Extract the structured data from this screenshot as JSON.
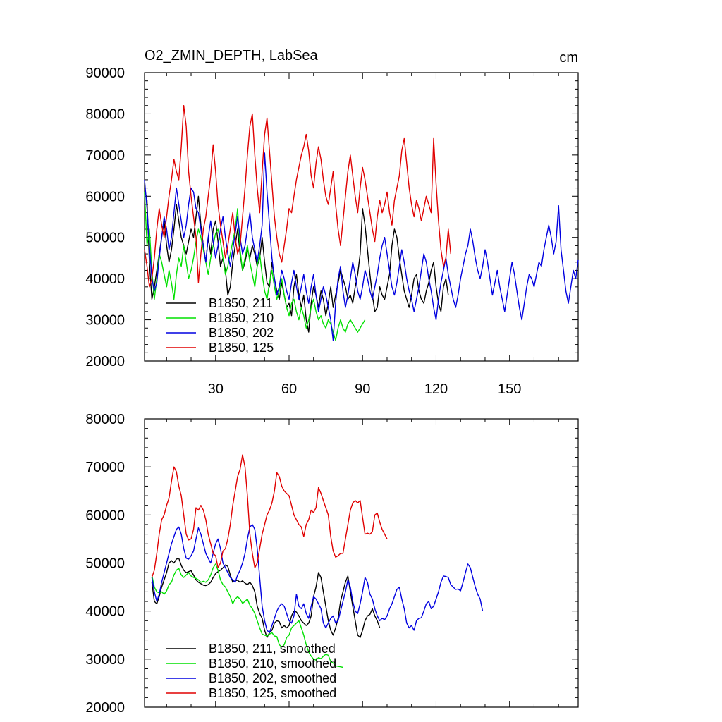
{
  "chart_data": [
    {
      "type": "line",
      "title": "O2_ZMIN_DEPTH, LabSea",
      "units": "cm",
      "xlim": [
        1,
        178
      ],
      "ylim": [
        20000,
        90000
      ],
      "xticks": [
        30,
        60,
        90,
        120,
        150
      ],
      "yticks": [
        20000,
        30000,
        40000,
        50000,
        60000,
        70000,
        80000,
        90000
      ],
      "legend_position": "bottom-left",
      "series": [
        {
          "name": "B1850, 211",
          "color": "#000000",
          "x_start": 1,
          "values": [
            62000,
            59000,
            44000,
            35000,
            38000,
            42000,
            46000,
            50000,
            54000,
            48000,
            44000,
            47000,
            52000,
            58000,
            54000,
            50000,
            48000,
            46000,
            49000,
            52000,
            50000,
            55000,
            60000,
            53000,
            48000,
            44000,
            50000,
            46000,
            52000,
            54000,
            49000,
            43000,
            45000,
            42000,
            36000,
            38000,
            44000,
            48000,
            52000,
            46000,
            42000,
            44000,
            47000,
            45000,
            48000,
            46000,
            43000,
            45000,
            50000,
            44000,
            39000,
            38000,
            44000,
            40000,
            37000,
            35000,
            39000,
            36000,
            33000,
            34000,
            31000,
            38000,
            41000,
            36000,
            33000,
            36000,
            30000,
            27000,
            34000,
            38000,
            36000,
            33000,
            37000,
            35000,
            31000,
            34000,
            38000,
            33000,
            36000,
            39000,
            42000,
            40000,
            38000,
            35000,
            36000,
            34000,
            38000,
            41000,
            46000,
            57000,
            53000,
            47000,
            41000,
            36000,
            32000,
            33000,
            38000,
            36000,
            35000,
            38000,
            41000,
            48000,
            52000,
            50000,
            45000,
            41000,
            37000,
            35000,
            33000,
            36000,
            40000,
            41000,
            37000,
            35000,
            34000,
            37000,
            39000,
            42000,
            44000,
            38000,
            34000,
            32000,
            38000,
            40000,
            36000
          ]
        },
        {
          "name": "B1850, 210",
          "color": "#00e000",
          "x_start": 1,
          "values": [
            61000,
            48000,
            52000,
            42000,
            35000,
            40000,
            46000,
            44000,
            41000,
            38000,
            42000,
            39000,
            35000,
            41000,
            45000,
            43000,
            48000,
            44000,
            40000,
            42000,
            45000,
            49000,
            52000,
            50000,
            47000,
            44000,
            41000,
            45000,
            48000,
            51000,
            52000,
            49000,
            45000,
            41000,
            43000,
            46000,
            49000,
            52000,
            57000,
            47000,
            42000,
            45000,
            48000,
            44000,
            41000,
            38000,
            43000,
            46000,
            41000,
            37000,
            35000,
            39000,
            42000,
            38000,
            35000,
            37000,
            40000,
            36000,
            33000,
            31000,
            34000,
            35000,
            32000,
            30000,
            33000,
            31000,
            28000,
            30000,
            33000,
            35000,
            32000,
            30000,
            31000,
            29000,
            28000,
            30000,
            29000,
            27000,
            25000,
            28000,
            30000,
            28000,
            27000,
            29000,
            30000,
            29000,
            28000,
            27000,
            28000,
            29000,
            30000
          ]
        },
        {
          "name": "B1850, 202",
          "color": "#0000e0",
          "x_start": 1,
          "values": [
            64000,
            57000,
            48000,
            40000,
            37000,
            39000,
            45000,
            50000,
            55000,
            52000,
            47000,
            50000,
            56000,
            62000,
            58000,
            54000,
            50000,
            53000,
            58000,
            62000,
            61000,
            57000,
            56000,
            52000,
            48000,
            44000,
            50000,
            54000,
            49000,
            45000,
            48000,
            52000,
            55000,
            50000,
            46000,
            43000,
            47000,
            51000,
            55000,
            50000,
            46000,
            48000,
            52000,
            56000,
            50000,
            47000,
            44000,
            48000,
            53000,
            70500,
            61000,
            53000,
            45000,
            40000,
            36000,
            38000,
            42000,
            40000,
            37000,
            35000,
            39000,
            42000,
            38000,
            35000,
            38000,
            41000,
            37000,
            34000,
            38000,
            41000,
            36000,
            32000,
            35000,
            38000,
            36000,
            33000,
            30000,
            25000,
            34000,
            40000,
            43000,
            37000,
            33000,
            36000,
            40000,
            44000,
            41000,
            37000,
            35000,
            38000,
            42000,
            40000,
            37000,
            35000,
            38000,
            41000,
            45000,
            48000,
            50000,
            46000,
            42000,
            38000,
            36000,
            39000,
            43000,
            47000,
            44000,
            40000,
            37000,
            35000,
            32000,
            35000,
            38000,
            42000,
            46000,
            44000,
            40000,
            37000,
            33000,
            30000,
            35000,
            39000,
            42000,
            45000,
            41000,
            38000,
            35000,
            33000,
            36000,
            40000,
            43000,
            46000,
            48000,
            52000,
            49000,
            45000,
            42000,
            40000,
            43000,
            47000,
            44000,
            40000,
            36000,
            39000,
            42000,
            38000,
            35000,
            32000,
            36000,
            40000,
            44000,
            41000,
            37000,
            33000,
            30000,
            34000,
            38000,
            41000,
            40000,
            38000,
            41000,
            44000,
            43000,
            47000,
            50000,
            53000,
            50000,
            46000,
            49000,
            57700,
            47000,
            42000,
            37000,
            34000,
            38000,
            42000,
            40000,
            44500
          ]
        },
        {
          "name": "B1850, 125",
          "color": "#e00000",
          "x_start": 1,
          "values": [
            47000,
            43000,
            38000,
            40000,
            45000,
            52000,
            57000,
            53000,
            50000,
            55000,
            60000,
            64000,
            69000,
            66000,
            64000,
            72000,
            82000,
            77000,
            66000,
            60000,
            55000,
            50000,
            39000,
            46000,
            52000,
            55000,
            60000,
            65000,
            72500,
            66000,
            58000,
            53000,
            49000,
            45000,
            48000,
            52000,
            56000,
            50000,
            46000,
            48000,
            55000,
            62000,
            70000,
            77000,
            80000,
            70000,
            62000,
            56000,
            66000,
            75000,
            79000,
            71000,
            63000,
            55000,
            50000,
            46000,
            44000,
            48000,
            52000,
            57000,
            56000,
            60000,
            64000,
            67000,
            70000,
            72000,
            75000,
            71000,
            65000,
            62000,
            68000,
            72000,
            69000,
            64000,
            60000,
            58000,
            62000,
            66000,
            58000,
            52000,
            48000,
            54000,
            60000,
            66000,
            70000,
            65000,
            60000,
            56000,
            62000,
            67000,
            64000,
            60000,
            56000,
            52000,
            49000,
            55000,
            59000,
            56000,
            58000,
            61000,
            56000,
            53000,
            59000,
            62000,
            65000,
            71000,
            74000,
            68000,
            62000,
            58000,
            55000,
            59000,
            57000,
            54000,
            57000,
            60000,
            58000,
            56000,
            74000,
            63000,
            54000,
            47000,
            43000,
            45000,
            52000,
            46000
          ]
        }
      ]
    },
    {
      "type": "line",
      "title": "",
      "xlim": [
        1,
        178
      ],
      "ylim": [
        20000,
        80000
      ],
      "yticks": [
        20000,
        30000,
        40000,
        50000,
        60000,
        70000,
        80000
      ],
      "legend_position": "bottom-left",
      "series": [
        {
          "name": "B1850, 211, smoothed",
          "color": "#000000",
          "x_start": 4,
          "values": [
            46000,
            42000,
            41500,
            43000,
            45000,
            46500,
            48000,
            50000,
            50500,
            50000,
            50800,
            51000,
            49500,
            48500,
            48000,
            48200,
            48400,
            47500,
            46500,
            46000,
            45700,
            45400,
            45300,
            45500,
            46000,
            47000,
            47800,
            48200,
            48500,
            49000,
            49600,
            49300,
            47500,
            46000,
            46300,
            46400,
            46000,
            46300,
            45800,
            45500,
            46000,
            45300,
            44000,
            41000,
            39500,
            38500,
            36000,
            34500,
            35500,
            36000,
            37500,
            38000,
            37800,
            36500,
            37000,
            36500,
            37000,
            39000,
            40000,
            39800,
            39000,
            38000,
            37500,
            37000,
            37500,
            39000,
            43000,
            45000,
            48000,
            47000,
            44000,
            41000,
            38000,
            36000,
            35000,
            36500,
            38500,
            42000,
            44000,
            46000,
            47300,
            44000,
            41000,
            38000,
            35000,
            34500,
            36000,
            38000,
            39000,
            39300,
            40500,
            39000,
            38000,
            36500
          ]
        },
        {
          "name": "B1850, 210, smoothed",
          "color": "#00e000",
          "x_start": 4,
          "values": [
            47500,
            45000,
            44000,
            43800,
            44000,
            43500,
            44200,
            45500,
            46000,
            47500,
            48500,
            48900,
            47500,
            47000,
            47500,
            48000,
            47300,
            47000,
            46800,
            46500,
            46000,
            46200,
            46000,
            46500,
            47500,
            49000,
            49800,
            48500,
            46500,
            45500,
            45000,
            44000,
            43000,
            41500,
            42500,
            43000,
            42500,
            41600,
            42000,
            42500,
            41200,
            40500,
            39500,
            38000,
            36500,
            35200,
            35000,
            34800,
            35200,
            35500,
            34800,
            34700,
            33000,
            32500,
            33000,
            34500,
            35000,
            36500,
            37000,
            37500,
            38000,
            36500,
            35000,
            33000,
            31500,
            30600,
            30000,
            29800,
            30300,
            30100,
            30600,
            31000,
            30800,
            29500,
            29200,
            28600,
            28500,
            28400,
            28300
          ]
        },
        {
          "name": "B1850, 202, smoothed",
          "color": "#0000e0",
          "x_start": 4,
          "values": [
            47000,
            44000,
            42000,
            43500,
            46000,
            48000,
            50000,
            52000,
            54000,
            55500,
            57000,
            57500,
            56000,
            53000,
            51000,
            50800,
            51500,
            52500,
            55000,
            57300,
            56000,
            54000,
            52000,
            51000,
            50000,
            52000,
            54000,
            55000,
            53000,
            50000,
            49000,
            48000,
            47000,
            46500,
            46000,
            47500,
            48500,
            50000,
            52000,
            55000,
            57500,
            58000,
            57000,
            53000,
            47000,
            41000,
            38000,
            36000,
            35500,
            37000,
            38500,
            40000,
            41000,
            41500,
            41000,
            39500,
            38000,
            37500,
            39000,
            43500,
            41000,
            40500,
            41500,
            39500,
            38500,
            41000,
            43000,
            42500,
            41500,
            40500,
            37500,
            36500,
            37500,
            38500,
            39000,
            37500,
            38000,
            40000,
            42000,
            44000,
            46500,
            45000,
            42000,
            40000,
            39500,
            41500,
            44000,
            47000,
            46000,
            43500,
            42500,
            40500,
            39000,
            38000,
            38500,
            38200,
            39000,
            40500,
            41500,
            43000,
            44500,
            45000,
            42500,
            40500,
            37500,
            36500,
            37000,
            36000,
            38000,
            38500,
            38600,
            40000,
            41500,
            42000,
            40500,
            41000,
            42500,
            44000,
            46000,
            47300,
            47200,
            47000,
            45500,
            45000,
            44500,
            44600,
            44200,
            46000,
            48000,
            49800,
            49000,
            47000,
            45000,
            43500,
            42500,
            40000
          ]
        },
        {
          "name": "B1850, 125, smoothed",
          "color": "#e00000",
          "x_start": 4,
          "values": [
            47000,
            48500,
            52000,
            56000,
            59000,
            60000,
            62000,
            63500,
            67000,
            70000,
            69000,
            66000,
            64000,
            60000,
            56000,
            54800,
            55000,
            57000,
            61500,
            61000,
            62000,
            61000,
            59000,
            56000,
            54000,
            52000,
            51500,
            49000,
            50000,
            52500,
            53000,
            55000,
            58000,
            62000,
            65000,
            68000,
            69500,
            72500,
            70000,
            64000,
            56000,
            52000,
            49000,
            50000,
            53000,
            56000,
            58000,
            60000,
            61000,
            62500,
            65000,
            68800,
            68000,
            66000,
            65000,
            64500,
            64000,
            62000,
            60000,
            59000,
            58000,
            57500,
            55500,
            58000,
            59000,
            61000,
            60500,
            61500,
            65700,
            64500,
            63000,
            61500,
            60000,
            55500,
            52500,
            51200,
            51500,
            52000,
            52000,
            55000,
            58000,
            61000,
            62500,
            63000,
            62500,
            63000,
            59500,
            56000,
            56200,
            56000,
            56500,
            60000,
            60400,
            58500,
            57000,
            56000,
            55000
          ]
        }
      ]
    }
  ]
}
